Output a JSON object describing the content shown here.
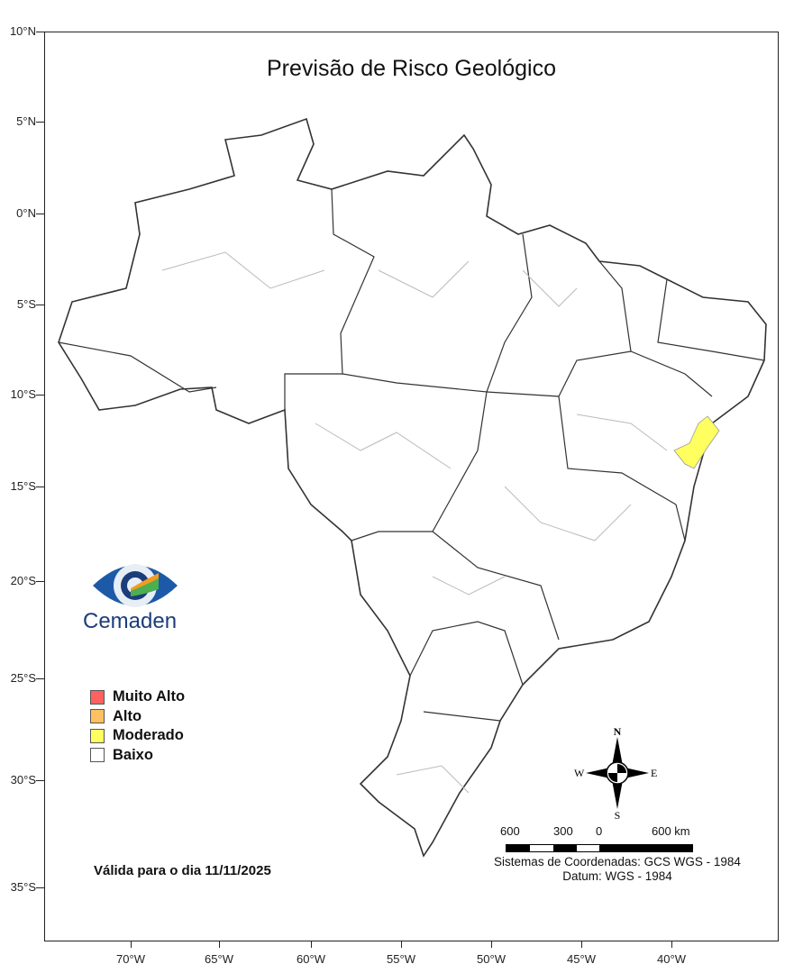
{
  "title": "Previsão de Risco Geológico",
  "lat_labels": [
    "10°N",
    "5°N",
    "0°N",
    "5°S",
    "10°S",
    "15°S",
    "20°S",
    "25°S",
    "30°S",
    "35°S"
  ],
  "lon_labels": [
    "70°W",
    "65°W",
    "60°W",
    "55°W",
    "50°W",
    "45°W",
    "40°W"
  ],
  "logo": {
    "text": "Cemaden"
  },
  "legend": [
    {
      "label": "Muito Alto",
      "color": "#ff6060"
    },
    {
      "label": "Alto",
      "color": "#ffc060"
    },
    {
      "label": "Moderado",
      "color": "#ffff60"
    },
    {
      "label": "Baixo",
      "color": "#ffffff"
    }
  ],
  "valid_text": "Válida para o dia 11/11/2025",
  "compass": {
    "n": "N",
    "s": "S",
    "e": "E",
    "w": "W"
  },
  "scale_bar": {
    "labels": [
      "600",
      "300",
      "0",
      "600 km"
    ]
  },
  "crs_text": "Sistemas de Coordenadas: GCS WGS - 1984",
  "datum_text": "Datum: WGS - 1984",
  "highlighted_regions": [
    {
      "level": "Moderado",
      "area": "Bahia coast (Salvador / Recôncavo)"
    }
  ]
}
